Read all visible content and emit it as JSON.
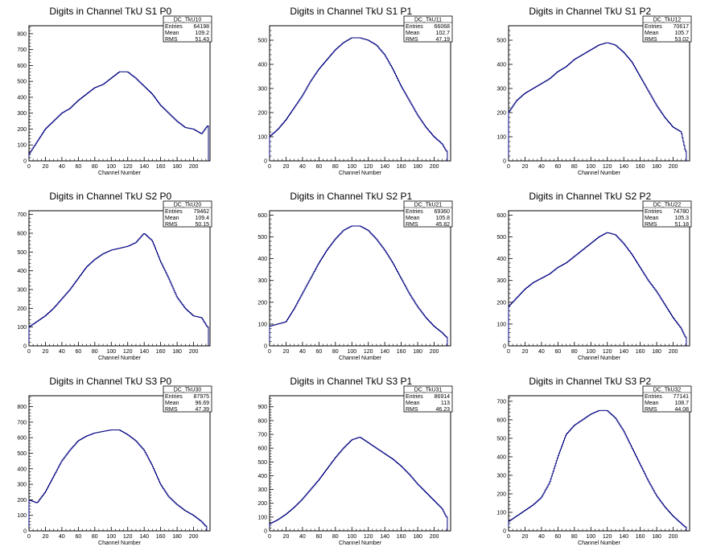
{
  "chart_data": [
    {
      "type": "histogram",
      "title": "Digits in Channel TkU S1 P0",
      "xlabel": "Channel Number",
      "ylabel": "",
      "xlim": [
        0,
        220
      ],
      "ylim": [
        0,
        850
      ],
      "xticks": [
        0,
        20,
        40,
        60,
        80,
        100,
        120,
        140,
        160,
        180,
        200
      ],
      "yticks": [
        0,
        100,
        200,
        300,
        400,
        500,
        600,
        700,
        800
      ],
      "stats": {
        "name": "DC_TkU10",
        "entries": "64198",
        "mean": "109.2",
        "rms": "51.43"
      },
      "x": [
        0,
        10,
        20,
        30,
        40,
        50,
        60,
        70,
        80,
        90,
        100,
        110,
        120,
        130,
        140,
        150,
        160,
        170,
        180,
        190,
        200,
        210,
        217
      ],
      "values": [
        40,
        120,
        200,
        250,
        300,
        330,
        380,
        420,
        460,
        480,
        520,
        560,
        560,
        520,
        470,
        420,
        350,
        300,
        250,
        210,
        200,
        170,
        220
      ]
    },
    {
      "type": "histogram",
      "title": "Digits in Channel TkU S1 P1",
      "xlabel": "Channel Number",
      "ylabel": "",
      "xlim": [
        0,
        220
      ],
      "ylim": [
        0,
        560
      ],
      "xticks": [
        0,
        20,
        40,
        60,
        80,
        100,
        120,
        140,
        160,
        180,
        200
      ],
      "yticks": [
        0,
        100,
        200,
        300,
        400,
        500
      ],
      "stats": {
        "name": "DC_TkU11",
        "entries": "66068",
        "mean": "102.7",
        "rms": "47.19"
      },
      "x": [
        0,
        10,
        20,
        30,
        40,
        50,
        60,
        70,
        80,
        90,
        100,
        110,
        120,
        130,
        140,
        150,
        160,
        170,
        180,
        190,
        200,
        210,
        215
      ],
      "values": [
        100,
        130,
        170,
        220,
        270,
        330,
        380,
        420,
        460,
        490,
        510,
        510,
        500,
        480,
        440,
        380,
        310,
        250,
        190,
        140,
        100,
        70,
        40
      ]
    },
    {
      "type": "histogram",
      "title": "Digits in Channel TkU S1 P2",
      "xlabel": "Channel Number",
      "ylabel": "",
      "xlim": [
        0,
        220
      ],
      "ylim": [
        0,
        560
      ],
      "xticks": [
        0,
        20,
        40,
        60,
        80,
        100,
        120,
        140,
        160,
        180,
        200
      ],
      "yticks": [
        0,
        100,
        200,
        300,
        400,
        500
      ],
      "stats": {
        "name": "DC_TkU12",
        "entries": "70617",
        "mean": "105.7",
        "rms": "53.02"
      },
      "x": [
        0,
        10,
        20,
        30,
        40,
        50,
        60,
        70,
        80,
        90,
        100,
        110,
        120,
        130,
        140,
        150,
        160,
        170,
        180,
        190,
        200,
        210,
        215
      ],
      "values": [
        200,
        250,
        280,
        300,
        320,
        340,
        370,
        390,
        420,
        440,
        460,
        480,
        490,
        480,
        450,
        410,
        350,
        290,
        230,
        180,
        140,
        120,
        40
      ]
    },
    {
      "type": "histogram",
      "title": "Digits in Channel TkU S2 P0",
      "xlabel": "Channel Number",
      "ylabel": "",
      "xlim": [
        0,
        220
      ],
      "ylim": [
        0,
        720
      ],
      "xticks": [
        0,
        20,
        40,
        60,
        80,
        100,
        120,
        140,
        160,
        180,
        200
      ],
      "yticks": [
        0,
        100,
        200,
        300,
        400,
        500,
        600,
        700
      ],
      "stats": {
        "name": "DC_TkU20",
        "entries": "79462",
        "mean": "109.4",
        "rms": "50.15"
      },
      "x": [
        0,
        10,
        20,
        30,
        40,
        50,
        60,
        70,
        80,
        90,
        100,
        110,
        120,
        130,
        140,
        150,
        160,
        170,
        180,
        190,
        200,
        210,
        217
      ],
      "values": [
        100,
        130,
        160,
        200,
        250,
        300,
        360,
        420,
        460,
        490,
        510,
        520,
        530,
        550,
        600,
        560,
        450,
        360,
        260,
        200,
        160,
        150,
        100
      ]
    },
    {
      "type": "histogram",
      "title": "Digits in Channel TkU S2 P1",
      "xlabel": "Channel Number",
      "ylabel": "",
      "xlim": [
        0,
        220
      ],
      "ylim": [
        0,
        620
      ],
      "xticks": [
        0,
        20,
        40,
        60,
        80,
        100,
        120,
        140,
        160,
        180,
        200
      ],
      "yticks": [
        0,
        100,
        200,
        300,
        400,
        500,
        600
      ],
      "stats": {
        "name": "DC_TkU21",
        "entries": "69360",
        "mean": "105.8",
        "rms": "45.82"
      },
      "x": [
        0,
        10,
        20,
        30,
        40,
        50,
        60,
        70,
        80,
        90,
        100,
        110,
        120,
        130,
        140,
        150,
        160,
        170,
        180,
        190,
        200,
        210,
        215
      ],
      "values": [
        90,
        100,
        110,
        170,
        240,
        310,
        380,
        440,
        490,
        530,
        550,
        550,
        530,
        490,
        440,
        380,
        310,
        240,
        180,
        130,
        90,
        60,
        40
      ]
    },
    {
      "type": "histogram",
      "title": "Digits in Channel TkU S2 P2",
      "xlabel": "Channel Number",
      "ylabel": "",
      "xlim": [
        0,
        220
      ],
      "ylim": [
        0,
        620
      ],
      "xticks": [
        0,
        20,
        40,
        60,
        80,
        100,
        120,
        140,
        160,
        180,
        200
      ],
      "yticks": [
        0,
        100,
        200,
        300,
        400,
        500,
        600
      ],
      "stats": {
        "name": "DC_TkU22",
        "entries": "74780",
        "mean": "105.3",
        "rms": "51.18"
      },
      "x": [
        0,
        10,
        20,
        30,
        40,
        50,
        60,
        70,
        80,
        90,
        100,
        110,
        120,
        130,
        140,
        150,
        160,
        170,
        180,
        190,
        200,
        210,
        215
      ],
      "values": [
        180,
        220,
        260,
        290,
        310,
        330,
        360,
        380,
        410,
        440,
        470,
        500,
        520,
        510,
        470,
        420,
        360,
        300,
        250,
        190,
        130,
        80,
        40
      ]
    },
    {
      "type": "histogram",
      "title": "Digits in Channel TkU S3 P0",
      "xlabel": "Channel Number",
      "ylabel": "",
      "xlim": [
        0,
        220
      ],
      "ylim": [
        0,
        870
      ],
      "xticks": [
        0,
        20,
        40,
        60,
        80,
        100,
        120,
        140,
        160,
        180,
        200
      ],
      "yticks": [
        0,
        100,
        200,
        300,
        400,
        500,
        600,
        700,
        800
      ],
      "stats": {
        "name": "DC_TkU30",
        "entries": "87975",
        "mean": "96.69",
        "rms": "47.39"
      },
      "x": [
        0,
        10,
        20,
        30,
        40,
        50,
        60,
        70,
        80,
        90,
        100,
        110,
        120,
        130,
        140,
        150,
        160,
        170,
        180,
        190,
        200,
        210,
        215
      ],
      "values": [
        200,
        180,
        250,
        350,
        450,
        520,
        580,
        610,
        630,
        640,
        650,
        650,
        620,
        580,
        520,
        420,
        300,
        220,
        170,
        130,
        100,
        60,
        30
      ]
    },
    {
      "type": "histogram",
      "title": "Digits in Channel TkU S3 P1",
      "xlabel": "Channel Number",
      "ylabel": "",
      "xlim": [
        0,
        220
      ],
      "ylim": [
        0,
        980
      ],
      "xticks": [
        0,
        20,
        40,
        60,
        80,
        100,
        120,
        140,
        160,
        180,
        200
      ],
      "yticks": [
        0,
        100,
        200,
        300,
        400,
        500,
        600,
        700,
        800,
        900
      ],
      "stats": {
        "name": "DC_TkU31",
        "entries": "86914",
        "mean": "113",
        "rms": "46.23"
      },
      "x": [
        0,
        10,
        20,
        30,
        40,
        50,
        60,
        70,
        80,
        90,
        100,
        110,
        120,
        130,
        140,
        150,
        160,
        170,
        180,
        190,
        200,
        210,
        215
      ],
      "values": [
        50,
        80,
        120,
        170,
        230,
        300,
        370,
        450,
        530,
        600,
        660,
        680,
        640,
        600,
        560,
        520,
        470,
        410,
        340,
        280,
        220,
        160,
        100
      ]
    },
    {
      "type": "histogram",
      "title": "Digits in Channel TkU S3 P2",
      "xlabel": "Channel Number",
      "ylabel": "",
      "xlim": [
        0,
        220
      ],
      "ylim": [
        0,
        730
      ],
      "xticks": [
        0,
        20,
        40,
        60,
        80,
        100,
        120,
        140,
        160,
        180,
        200
      ],
      "yticks": [
        0,
        100,
        200,
        300,
        400,
        500,
        600,
        700
      ],
      "stats": {
        "name": "DC_TkU32",
        "entries": "77141",
        "mean": "108.7",
        "rms": "44.08"
      },
      "x": [
        0,
        10,
        20,
        30,
        40,
        50,
        60,
        70,
        80,
        90,
        100,
        110,
        120,
        130,
        140,
        150,
        160,
        170,
        180,
        190,
        200,
        210,
        215
      ],
      "values": [
        50,
        80,
        110,
        140,
        180,
        260,
        400,
        520,
        570,
        600,
        630,
        650,
        650,
        610,
        540,
        450,
        360,
        270,
        190,
        130,
        80,
        40,
        20
      ]
    }
  ],
  "stats_labels": {
    "entries": "Entries",
    "mean": "Mean",
    "rms": "RMS"
  },
  "colors": {
    "line": "#000080",
    "axis": "#000000",
    "background": "#ffffff"
  }
}
